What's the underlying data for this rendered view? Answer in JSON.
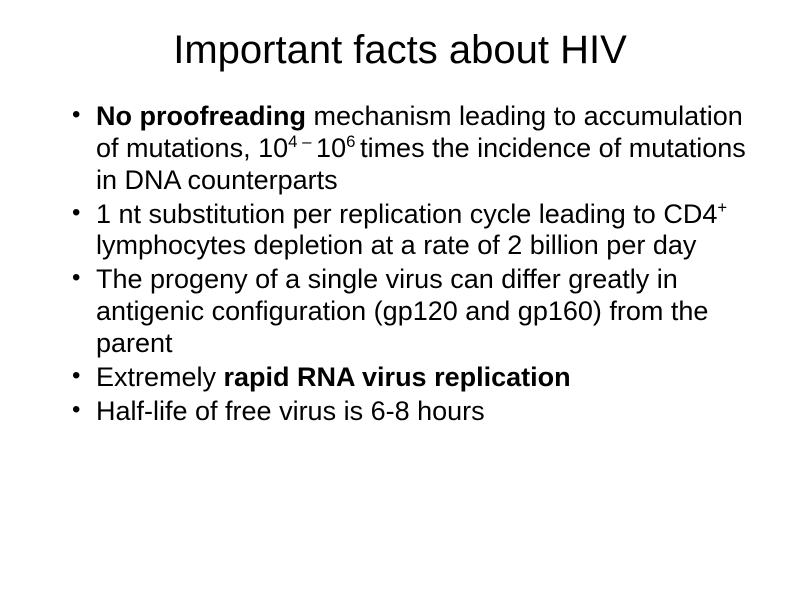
{
  "slide": {
    "title": "Important facts about HIV",
    "title_fontsize": 40,
    "body_fontsize": 27,
    "background_color": "#ffffff",
    "text_color": "#000000",
    "bullets": [
      {
        "parts": [
          {
            "text": "No proofreading",
            "bold": true
          },
          {
            "text": " mechanism leading to accumulation of mutations, 10"
          },
          {
            "text": "4 – ",
            "sup": true
          },
          {
            "text": "10"
          },
          {
            "text": "6 ",
            "sup": true
          },
          {
            "text": "times the incidence of mutations in DNA counterparts"
          }
        ]
      },
      {
        "parts": [
          {
            "text": "1 nt substitution per replication cycle leading to CD4"
          },
          {
            "text": "+ ",
            "sup": true
          },
          {
            "text": "lymphocytes depletion at a rate of 2 billion per day"
          }
        ]
      },
      {
        "parts": [
          {
            "text": "The progeny of a single virus can differ greatly in antigenic configuration (gp120 and gp160) from the parent"
          }
        ]
      },
      {
        "parts": [
          {
            "text": "Extremely "
          },
          {
            "text": "rapid RNA virus replication",
            "bold": true
          }
        ]
      },
      {
        "parts": [
          {
            "text": "Half-life of free virus is 6-8 hours"
          }
        ]
      }
    ]
  }
}
